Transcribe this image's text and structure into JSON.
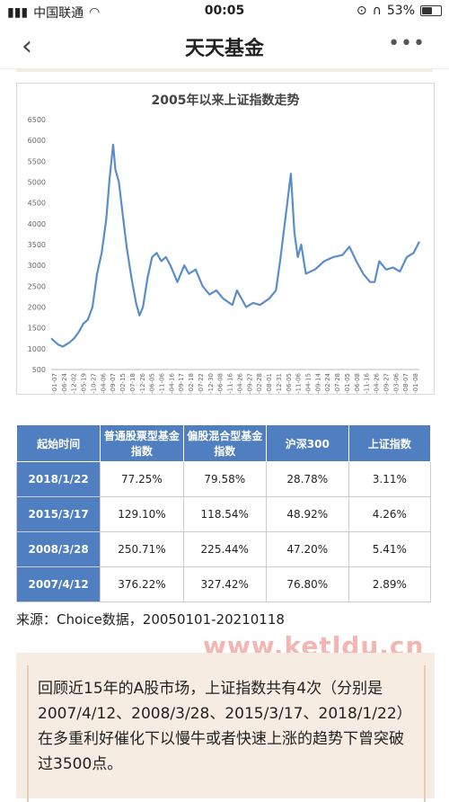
{
  "status": {
    "carrier": "中国联通",
    "time": "00:05",
    "battery": "53%",
    "battery_level": 0.53
  },
  "nav": {
    "title": "天天基金",
    "back_icon": "chevron-left-icon",
    "more_icon": "more-horizontal-icon"
  },
  "chart_data": {
    "type": "line",
    "title": "2005年以来上证指数走势",
    "xlabel": "",
    "ylabel": "",
    "ylim": [
      500,
      6500
    ],
    "grid": false,
    "color": "#5b8dc9",
    "x_tick_labels": [
      "2005-01-07",
      "2005-06-24",
      "2005-12-02",
      "2006-05-19",
      "2006-10-27",
      "2007-04-06",
      "2007-09-07",
      "2008-02-15",
      "2008-07-18",
      "2008-12-26",
      "2009-06-05",
      "2009-11-06",
      "2010-04-16",
      "2010-09-17",
      "2011-02-18",
      "2011-07-22",
      "2011-12-30",
      "2012-06-08",
      "2012-11-16",
      "2013-04-26",
      "2013-09-27",
      "2014-02-28",
      "2014-08-01",
      "2014-12-31",
      "2015-06-05",
      "2015-11-06",
      "2016-04-15",
      "2016-09-14",
      "2017-02-24",
      "2017-07-28",
      "2018-01-05",
      "2018-06-08",
      "2018-11-16",
      "2019-04-26",
      "2019-09-27",
      "2020-03-06",
      "2020-08-07",
      "2021-01-08"
    ],
    "y_tick_labels": [
      "6500",
      "6000",
      "5500",
      "5000",
      "4500",
      "4000",
      "3500",
      "3000",
      "2500",
      "2000",
      "1500",
      "1000",
      "500"
    ],
    "series": [
      {
        "x": [
          2005.0,
          2005.3,
          2005.5,
          2005.8,
          2006.0,
          2006.2,
          2006.4,
          2006.6,
          2006.8,
          2007.0,
          2007.2,
          2007.4,
          2007.55,
          2007.7,
          2007.8,
          2007.95,
          2008.1,
          2008.3,
          2008.5,
          2008.7,
          2008.85,
          2009.0,
          2009.2,
          2009.4,
          2009.6,
          2009.8,
          2010.0,
          2010.2,
          2010.5,
          2010.8,
          2011.0,
          2011.3,
          2011.6,
          2011.9,
          2012.2,
          2012.5,
          2012.9,
          2013.1,
          2013.5,
          2013.8,
          2014.1,
          2014.5,
          2014.8,
          2015.0,
          2015.25,
          2015.45,
          2015.6,
          2015.75,
          2015.9,
          2016.1,
          2016.5,
          2016.9,
          2017.3,
          2017.7,
          2018.0,
          2018.3,
          2018.6,
          2018.9,
          2019.1,
          2019.3,
          2019.6,
          2019.9,
          2020.2,
          2020.5,
          2020.8,
          2021.05
        ],
        "y": [
          1250,
          1100,
          1050,
          1150,
          1250,
          1400,
          1600,
          1700,
          2000,
          2800,
          3300,
          4100,
          5100,
          5900,
          5300,
          5000,
          4300,
          3400,
          2700,
          2100,
          1800,
          2000,
          2700,
          3200,
          3300,
          3100,
          3200,
          3000,
          2600,
          3000,
          2800,
          2900,
          2500,
          2300,
          2400,
          2200,
          2050,
          2400,
          2000,
          2100,
          2050,
          2200,
          2400,
          3200,
          4300,
          5200,
          3800,
          3200,
          3500,
          2800,
          2900,
          3100,
          3200,
          3250,
          3450,
          3100,
          2800,
          2600,
          2600,
          3100,
          2900,
          2950,
          2850,
          3200,
          3300,
          3570
        ]
      }
    ]
  },
  "table": {
    "headers": [
      "起始时间",
      "普通股票型基金指数",
      "偏股混合型基金指数",
      "沪深300",
      "上证指数"
    ],
    "rows": [
      [
        "2018/1/22",
        "77.25%",
        "79.58%",
        "28.78%",
        "3.11%"
      ],
      [
        "2015/3/17",
        "129.10%",
        "118.54%",
        "48.92%",
        "4.26%"
      ],
      [
        "2008/3/28",
        "250.71%",
        "225.44%",
        "47.20%",
        "5.41%"
      ],
      [
        "2007/4/12",
        "376.22%",
        "327.42%",
        "76.80%",
        "2.89%"
      ]
    ]
  },
  "source": "来源：Choice数据，20050101-20210118",
  "watermark": "www.ketldu.cn",
  "note": "回顾近15年的A股市场，上证指数共有4次（分别是2007/4/12、2008/3/28、2015/3/17、2018/1/22）在多重利好催化下以慢牛或者快速上涨的趋势下曾突破过3500点。"
}
